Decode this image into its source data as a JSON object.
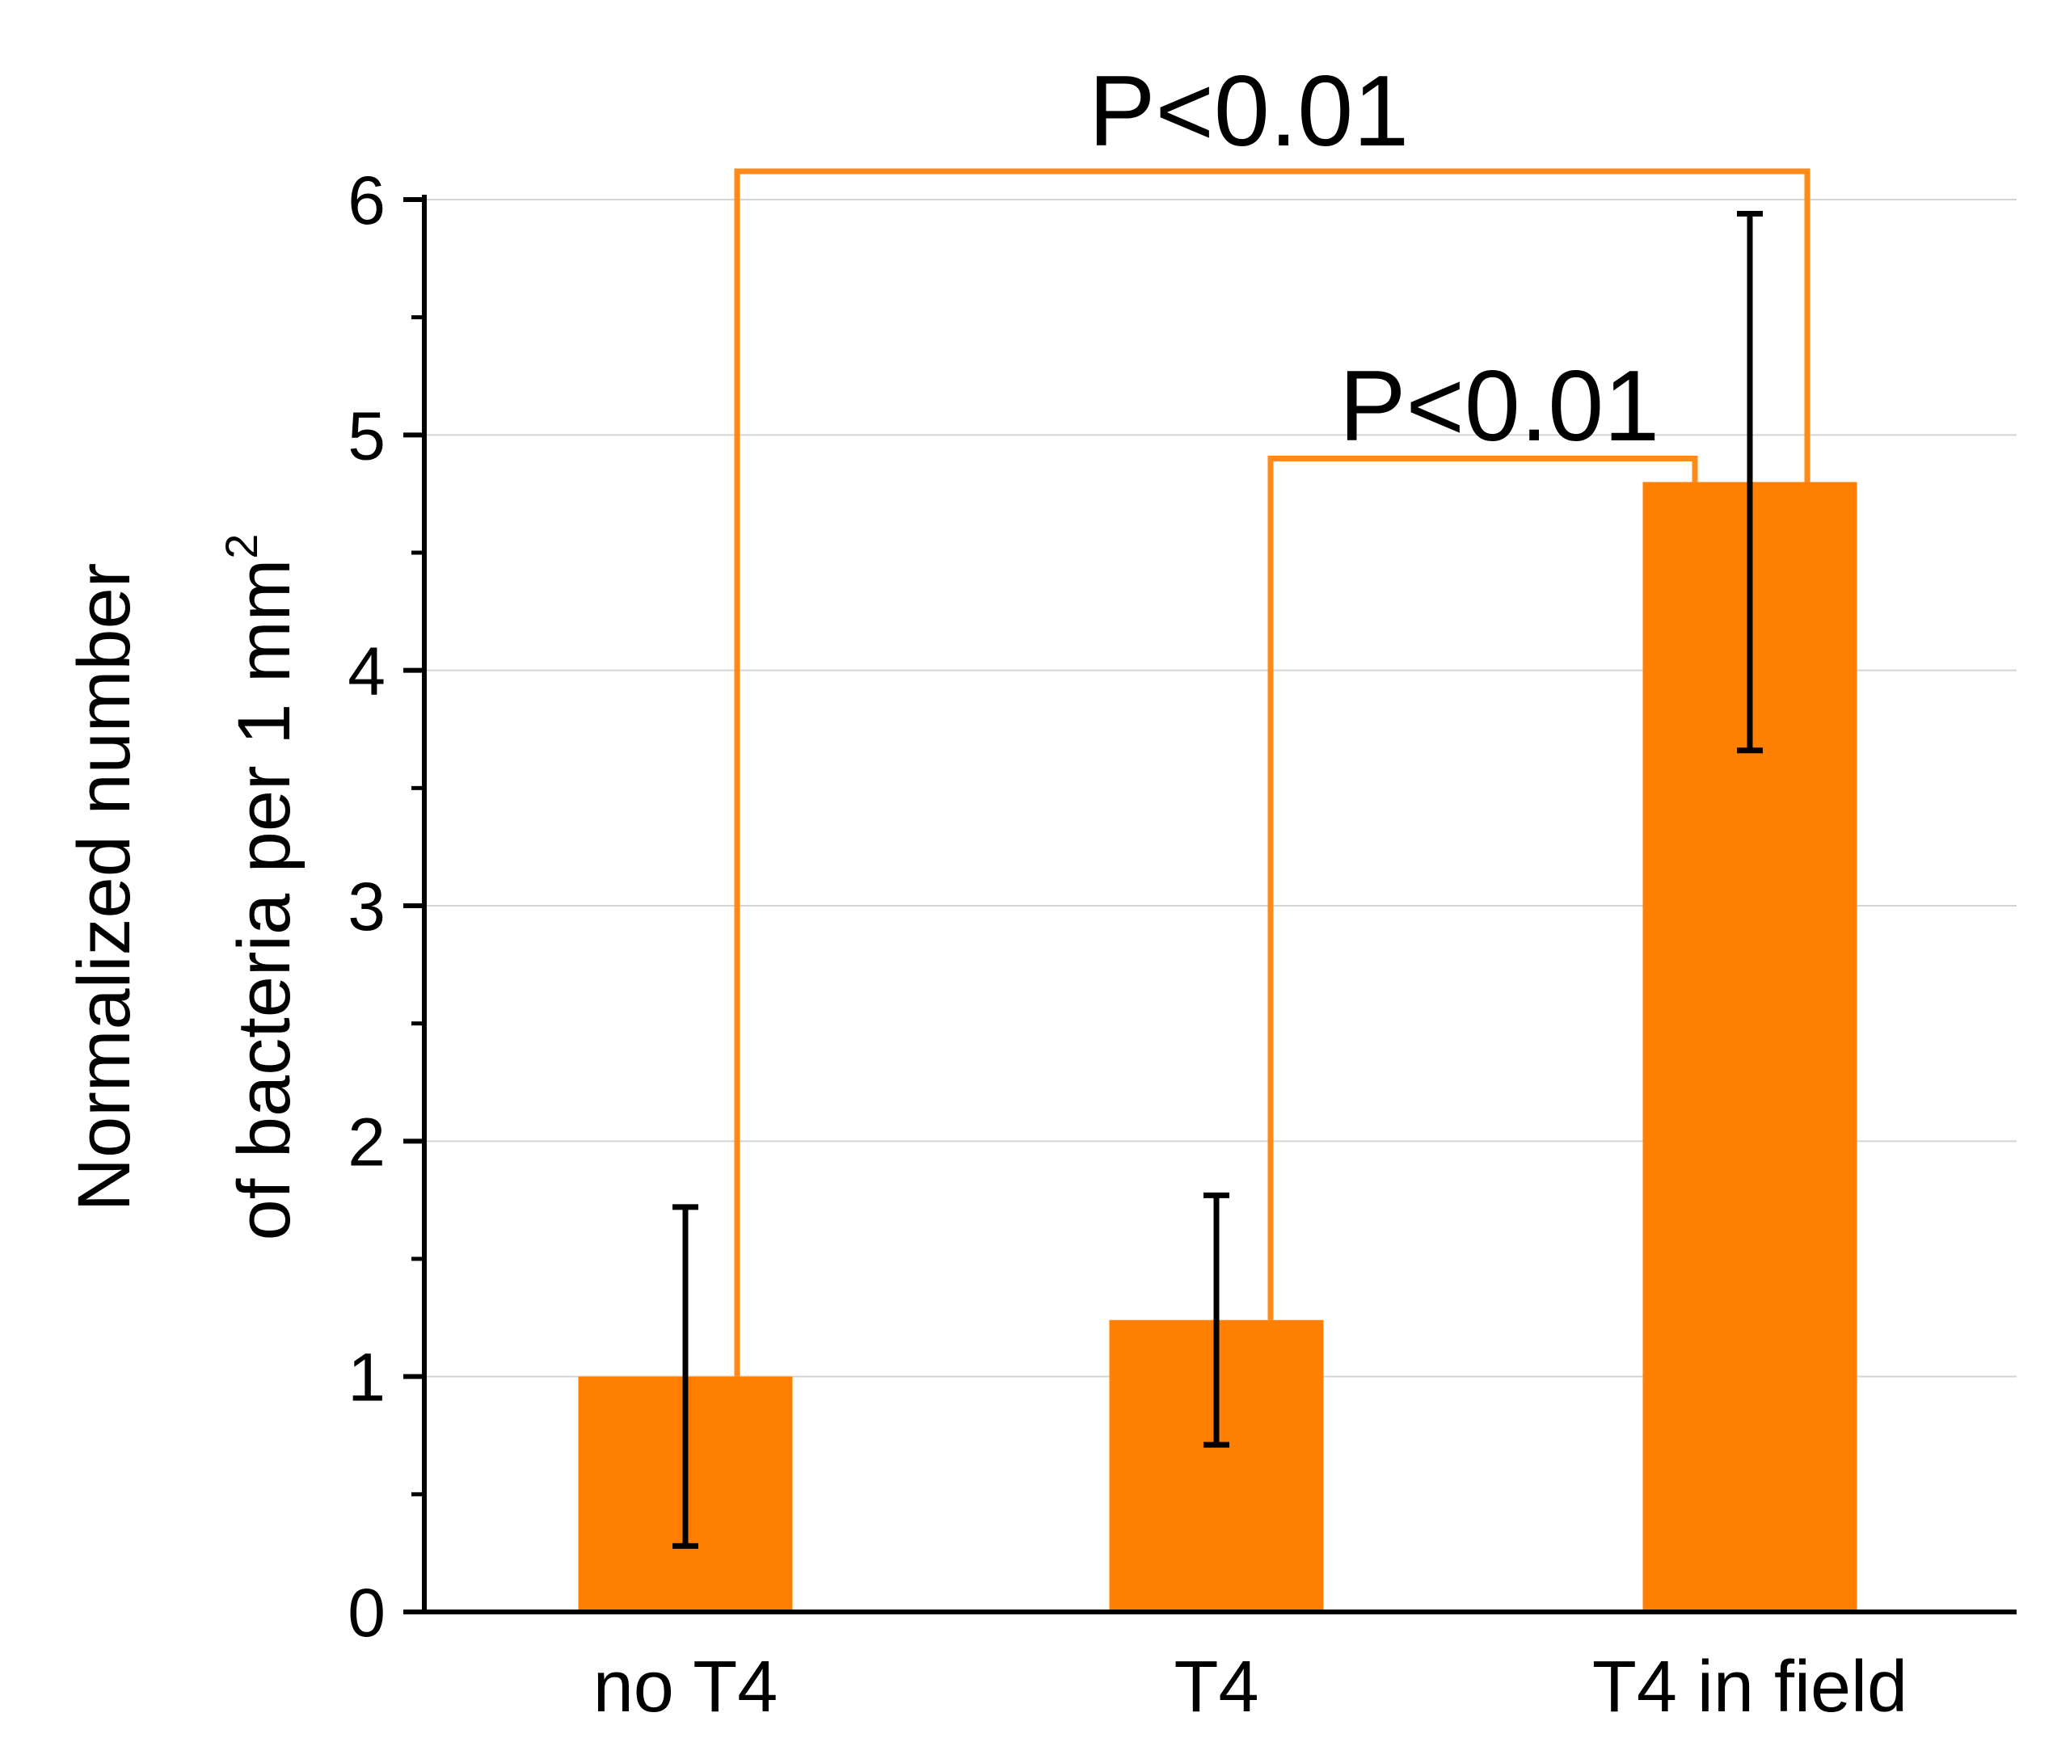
{
  "chart_data": {
    "type": "bar",
    "title": "",
    "xlabel": "",
    "ylabel": {
      "line1": "Normalized number",
      "line2": "of bacteria per 1 mm",
      "superscript": "2"
    },
    "categories": [
      "no T4",
      "T4",
      "T4 in field"
    ],
    "values": [
      1.0,
      1.24,
      4.8
    ],
    "error_bars": {
      "lower": [
        0.28,
        0.71,
        3.66
      ],
      "upper": [
        1.72,
        1.77,
        5.94
      ]
    },
    "ylim": [
      0,
      6
    ],
    "y_ticks": [
      "0",
      "1",
      "2",
      "3",
      "4",
      "5",
      "6"
    ],
    "minor_tick_step": 0.5,
    "grid": true,
    "bar_color": "#ff8000",
    "bracket_color": "#ff8a1a",
    "error_color": "#000000",
    "significance": [
      {
        "from": 0,
        "to": 2,
        "level": 6.12,
        "label": "P<0.01"
      },
      {
        "from": 1,
        "to": 2,
        "level": 4.9,
        "label": "P<0.01"
      }
    ]
  }
}
